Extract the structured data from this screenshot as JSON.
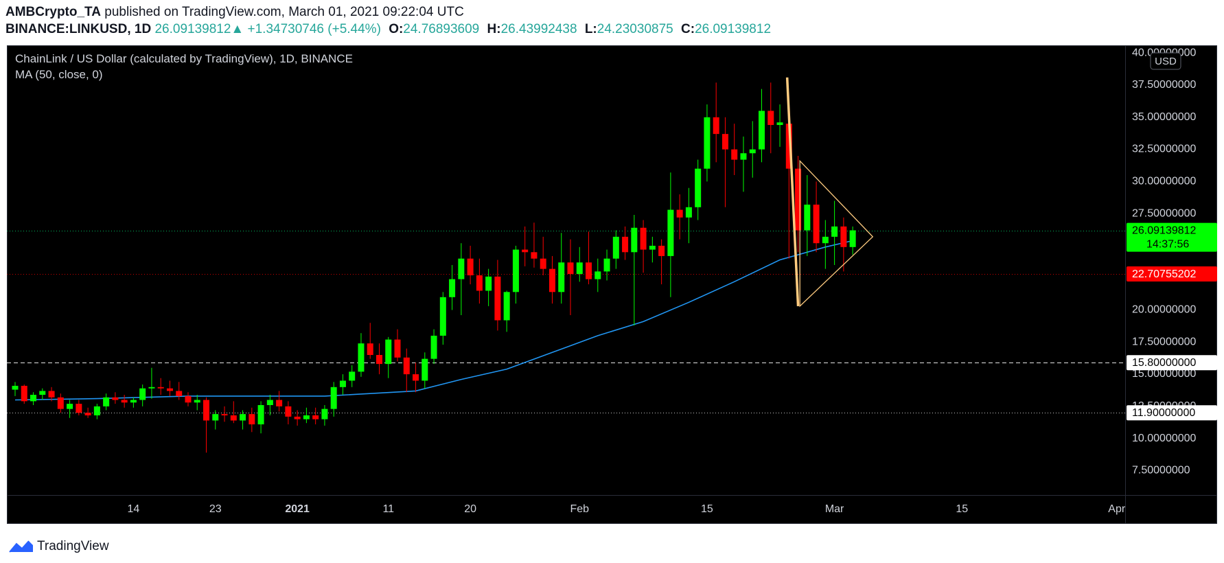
{
  "header": {
    "author": "AMBCrypto_TA",
    "published": "published on TradingView.com, March 01, 2021 09:22:04 UTC",
    "symbol": "BINANCE:LINKUSD, 1D",
    "last": "26.09139812",
    "change": "+1.34730746 (+5.44%)",
    "open_label": "O:",
    "open": "24.76893609",
    "high_label": "H:",
    "high": "26.43992438",
    "low_label": "L:",
    "low": "24.23030875",
    "close_label": "C:",
    "close": "26.09139812"
  },
  "legend": {
    "title": "ChainLink / US Dollar (calculated by TradingView), 1D, BINANCE",
    "indicator": "MA (50, close, 0)"
  },
  "footer": {
    "brand": "TradingView"
  },
  "colors": {
    "up": "#00ff00",
    "down": "#ff0000",
    "ma": "#2196f3",
    "triangle": "#ffcc80",
    "flagpole": "#ffcc80",
    "price_line": "#00e676",
    "red_line": "#ff0000"
  },
  "chart_data": {
    "type": "candlestick",
    "currency": "USD",
    "ylim": [
      5.5,
      40.5
    ],
    "y_ticks": [
      {
        "value": 7.5,
        "label": "7.50000000"
      },
      {
        "value": 10,
        "label": "10.00000000"
      },
      {
        "value": 12.5,
        "label": "12.50000000"
      },
      {
        "value": 15,
        "label": "15.00000000"
      },
      {
        "value": 17.5,
        "label": "17.50000000"
      },
      {
        "value": 20,
        "label": "20.00000000"
      },
      {
        "value": 22.5,
        "label": "22.50000000"
      },
      {
        "value": 25,
        "label": "25.00000000"
      },
      {
        "value": 27.5,
        "label": "27.50000000"
      },
      {
        "value": 30,
        "label": "30.00000000"
      },
      {
        "value": 32.5,
        "label": "32.50000000"
      },
      {
        "value": 35,
        "label": "35.00000000"
      },
      {
        "value": 37.5,
        "label": "37.50000000"
      },
      {
        "value": 40,
        "label": "40.00000000"
      }
    ],
    "x_ticks": [
      {
        "day": 14,
        "label": "14"
      },
      {
        "day": 23,
        "label": "23"
      },
      {
        "day": 32,
        "label": "2021"
      },
      {
        "day": 42,
        "label": "11"
      },
      {
        "day": 51,
        "label": "20"
      },
      {
        "day": 63,
        "label": "Feb"
      },
      {
        "day": 77,
        "label": "15"
      },
      {
        "day": 91,
        "label": "Mar"
      },
      {
        "day": 105,
        "label": "15"
      },
      {
        "day": 122,
        "label": "Apr"
      }
    ],
    "x_range": [
      1,
      123
    ],
    "price_labels": [
      {
        "value": 26.09139812,
        "label": "26.09139812",
        "sub": "14:37:56",
        "style": "green"
      },
      {
        "value": 22.70755202,
        "label": "22.70755202",
        "style": "red"
      },
      {
        "value": 15.8,
        "label": "15.80000000",
        "style": "white"
      },
      {
        "value": 11.9,
        "label": "11.90000000",
        "style": "white"
      }
    ],
    "horizontal_lines": [
      {
        "value": 26.09139812,
        "style": "dotted",
        "color": "#00e676"
      },
      {
        "value": 22.70755202,
        "style": "dotted",
        "color": "#ff0000"
      },
      {
        "value": 15.8,
        "style": "dashed",
        "color": "#ffffff"
      },
      {
        "value": 11.9,
        "style": "dotted",
        "color": "#ffffff"
      }
    ],
    "candles": [
      {
        "d": 1,
        "o": 13.7,
        "h": 14.3,
        "l": 13.2,
        "c": 14.0
      },
      {
        "d": 2,
        "o": 14.0,
        "h": 14.1,
        "l": 12.6,
        "c": 12.8
      },
      {
        "d": 3,
        "o": 12.8,
        "h": 13.5,
        "l": 12.5,
        "c": 13.3
      },
      {
        "d": 4,
        "o": 13.3,
        "h": 13.8,
        "l": 12.9,
        "c": 13.6
      },
      {
        "d": 5,
        "o": 13.6,
        "h": 13.9,
        "l": 12.8,
        "c": 13.1
      },
      {
        "d": 6,
        "o": 13.1,
        "h": 13.4,
        "l": 11.9,
        "c": 12.2
      },
      {
        "d": 7,
        "o": 12.2,
        "h": 12.9,
        "l": 11.5,
        "c": 12.6
      },
      {
        "d": 8,
        "o": 12.6,
        "h": 12.9,
        "l": 11.7,
        "c": 11.9
      },
      {
        "d": 9,
        "o": 11.9,
        "h": 12.3,
        "l": 11.5,
        "c": 11.7
      },
      {
        "d": 10,
        "o": 11.7,
        "h": 12.6,
        "l": 11.4,
        "c": 12.4
      },
      {
        "d": 11,
        "o": 12.4,
        "h": 13.4,
        "l": 12.1,
        "c": 13.1
      },
      {
        "d": 12,
        "o": 13.1,
        "h": 13.5,
        "l": 12.6,
        "c": 12.9
      },
      {
        "d": 13,
        "o": 12.9,
        "h": 13.3,
        "l": 12.3,
        "c": 12.7
      },
      {
        "d": 14,
        "o": 12.7,
        "h": 13.1,
        "l": 12.3,
        "c": 12.9
      },
      {
        "d": 15,
        "o": 12.9,
        "h": 14.1,
        "l": 12.4,
        "c": 13.8
      },
      {
        "d": 16,
        "o": 13.8,
        "h": 15.4,
        "l": 13.0,
        "c": 13.9
      },
      {
        "d": 17,
        "o": 13.9,
        "h": 14.6,
        "l": 13.3,
        "c": 13.8
      },
      {
        "d": 18,
        "o": 13.8,
        "h": 14.4,
        "l": 13.2,
        "c": 13.6
      },
      {
        "d": 19,
        "o": 13.6,
        "h": 14.3,
        "l": 12.9,
        "c": 13.2
      },
      {
        "d": 20,
        "o": 13.2,
        "h": 13.5,
        "l": 12.4,
        "c": 12.7
      },
      {
        "d": 21,
        "o": 12.7,
        "h": 13.3,
        "l": 12.1,
        "c": 12.9
      },
      {
        "d": 22,
        "o": 12.9,
        "h": 13.1,
        "l": 8.8,
        "c": 11.3
      },
      {
        "d": 23,
        "o": 11.3,
        "h": 12.1,
        "l": 10.6,
        "c": 11.8
      },
      {
        "d": 24,
        "o": 11.8,
        "h": 12.4,
        "l": 11.2,
        "c": 11.7
      },
      {
        "d": 25,
        "o": 11.7,
        "h": 12.8,
        "l": 11.1,
        "c": 11.3
      },
      {
        "d": 26,
        "o": 11.3,
        "h": 12.1,
        "l": 10.6,
        "c": 11.8
      },
      {
        "d": 27,
        "o": 11.8,
        "h": 12.3,
        "l": 10.4,
        "c": 11.0
      },
      {
        "d": 28,
        "o": 11.0,
        "h": 12.8,
        "l": 10.3,
        "c": 12.5
      },
      {
        "d": 29,
        "o": 12.5,
        "h": 13.3,
        "l": 11.7,
        "c": 12.9
      },
      {
        "d": 30,
        "o": 12.9,
        "h": 13.6,
        "l": 12.0,
        "c": 12.4
      },
      {
        "d": 31,
        "o": 12.4,
        "h": 12.8,
        "l": 11.0,
        "c": 11.6
      },
      {
        "d": 32,
        "o": 11.6,
        "h": 12.1,
        "l": 10.9,
        "c": 11.4
      },
      {
        "d": 33,
        "o": 11.4,
        "h": 12.3,
        "l": 11.1,
        "c": 11.7
      },
      {
        "d": 34,
        "o": 11.7,
        "h": 12.3,
        "l": 11.0,
        "c": 11.4
      },
      {
        "d": 35,
        "o": 11.4,
        "h": 12.5,
        "l": 10.9,
        "c": 12.2
      },
      {
        "d": 36,
        "o": 12.2,
        "h": 14.3,
        "l": 11.6,
        "c": 13.9
      },
      {
        "d": 37,
        "o": 13.9,
        "h": 14.9,
        "l": 13.3,
        "c": 14.4
      },
      {
        "d": 38,
        "o": 14.4,
        "h": 15.6,
        "l": 13.9,
        "c": 15.1
      },
      {
        "d": 39,
        "o": 15.1,
        "h": 18.1,
        "l": 14.7,
        "c": 17.3
      },
      {
        "d": 40,
        "o": 17.3,
        "h": 18.9,
        "l": 16.1,
        "c": 16.4
      },
      {
        "d": 41,
        "o": 16.4,
        "h": 17.3,
        "l": 14.9,
        "c": 15.7
      },
      {
        "d": 42,
        "o": 15.7,
        "h": 17.8,
        "l": 14.6,
        "c": 17.6
      },
      {
        "d": 43,
        "o": 17.6,
        "h": 18.4,
        "l": 15.9,
        "c": 16.2
      },
      {
        "d": 44,
        "o": 16.2,
        "h": 16.9,
        "l": 13.5,
        "c": 14.9
      },
      {
        "d": 45,
        "o": 14.9,
        "h": 15.8,
        "l": 13.5,
        "c": 14.4
      },
      {
        "d": 46,
        "o": 14.4,
        "h": 16.6,
        "l": 13.8,
        "c": 16.1
      },
      {
        "d": 47,
        "o": 16.1,
        "h": 18.4,
        "l": 15.7,
        "c": 17.9
      },
      {
        "d": 48,
        "o": 17.9,
        "h": 21.3,
        "l": 17.2,
        "c": 20.9
      },
      {
        "d": 49,
        "o": 20.9,
        "h": 23.4,
        "l": 19.9,
        "c": 22.3
      },
      {
        "d": 50,
        "o": 22.3,
        "h": 25.1,
        "l": 19.5,
        "c": 23.9
      },
      {
        "d": 51,
        "o": 23.9,
        "h": 24.9,
        "l": 21.9,
        "c": 22.6
      },
      {
        "d": 52,
        "o": 22.6,
        "h": 23.9,
        "l": 20.4,
        "c": 21.4
      },
      {
        "d": 53,
        "o": 21.4,
        "h": 23.1,
        "l": 20.2,
        "c": 22.5
      },
      {
        "d": 54,
        "o": 22.5,
        "h": 23.8,
        "l": 18.3,
        "c": 19.1
      },
      {
        "d": 55,
        "o": 19.1,
        "h": 21.4,
        "l": 18.2,
        "c": 21.3
      },
      {
        "d": 56,
        "o": 21.3,
        "h": 24.9,
        "l": 20.4,
        "c": 24.6
      },
      {
        "d": 57,
        "o": 24.6,
        "h": 26.4,
        "l": 23.3,
        "c": 24.4
      },
      {
        "d": 58,
        "o": 24.4,
        "h": 26.7,
        "l": 23.2,
        "c": 23.9
      },
      {
        "d": 59,
        "o": 23.9,
        "h": 25.6,
        "l": 22.6,
        "c": 23.1
      },
      {
        "d": 60,
        "o": 23.1,
        "h": 24.1,
        "l": 20.4,
        "c": 21.3
      },
      {
        "d": 61,
        "o": 21.3,
        "h": 25.9,
        "l": 20.4,
        "c": 23.6
      },
      {
        "d": 62,
        "o": 23.6,
        "h": 25.4,
        "l": 19.5,
        "c": 22.7
      },
      {
        "d": 63,
        "o": 22.7,
        "h": 24.8,
        "l": 22.1,
        "c": 23.6
      },
      {
        "d": 64,
        "o": 23.6,
        "h": 26.0,
        "l": 21.9,
        "c": 22.3
      },
      {
        "d": 65,
        "o": 22.3,
        "h": 23.9,
        "l": 21.3,
        "c": 22.9
      },
      {
        "d": 66,
        "o": 22.9,
        "h": 24.6,
        "l": 22.2,
        "c": 23.9
      },
      {
        "d": 67,
        "o": 23.9,
        "h": 26.1,
        "l": 23.1,
        "c": 25.6
      },
      {
        "d": 68,
        "o": 25.6,
        "h": 26.4,
        "l": 23.8,
        "c": 24.4
      },
      {
        "d": 69,
        "o": 24.4,
        "h": 27.3,
        "l": 18.7,
        "c": 26.3
      },
      {
        "d": 70,
        "o": 26.3,
        "h": 26.9,
        "l": 22.8,
        "c": 24.6
      },
      {
        "d": 71,
        "o": 24.6,
        "h": 25.6,
        "l": 23.6,
        "c": 24.9
      },
      {
        "d": 72,
        "o": 24.9,
        "h": 25.4,
        "l": 21.9,
        "c": 24.1
      },
      {
        "d": 73,
        "o": 24.1,
        "h": 30.6,
        "l": 20.9,
        "c": 27.7
      },
      {
        "d": 74,
        "o": 27.7,
        "h": 28.9,
        "l": 25.4,
        "c": 27.1
      },
      {
        "d": 75,
        "o": 27.1,
        "h": 29.4,
        "l": 25.1,
        "c": 27.9
      },
      {
        "d": 76,
        "o": 27.9,
        "h": 31.6,
        "l": 26.9,
        "c": 30.9
      },
      {
        "d": 77,
        "o": 30.9,
        "h": 35.9,
        "l": 29.9,
        "c": 34.9
      },
      {
        "d": 78,
        "o": 34.9,
        "h": 37.6,
        "l": 31.4,
        "c": 33.6
      },
      {
        "d": 79,
        "o": 33.6,
        "h": 34.9,
        "l": 27.9,
        "c": 32.4
      },
      {
        "d": 80,
        "o": 32.4,
        "h": 34.4,
        "l": 30.4,
        "c": 31.6
      },
      {
        "d": 81,
        "o": 31.6,
        "h": 33.4,
        "l": 29.1,
        "c": 32.1
      },
      {
        "d": 82,
        "o": 32.1,
        "h": 34.6,
        "l": 30.2,
        "c": 32.4
      },
      {
        "d": 83,
        "o": 32.4,
        "h": 37.1,
        "l": 31.4,
        "c": 35.4
      },
      {
        "d": 84,
        "o": 35.4,
        "h": 37.6,
        "l": 32.1,
        "c": 34.3
      },
      {
        "d": 85,
        "o": 34.3,
        "h": 35.9,
        "l": 32.6,
        "c": 34.5
      },
      {
        "d": 86,
        "o": 34.4,
        "h": 35.4,
        "l": 23.9,
        "c": 30.9
      },
      {
        "d": 87,
        "o": 30.9,
        "h": 31.9,
        "l": 24.4,
        "c": 26.1
      },
      {
        "d": 88,
        "o": 26.1,
        "h": 30.4,
        "l": 24.1,
        "c": 28.1
      },
      {
        "d": 89,
        "o": 28.1,
        "h": 29.9,
        "l": 24.4,
        "c": 25.1
      },
      {
        "d": 90,
        "o": 25.1,
        "h": 26.9,
        "l": 23.1,
        "c": 25.6
      },
      {
        "d": 91,
        "o": 25.6,
        "h": 28.4,
        "l": 23.4,
        "c": 26.4
      },
      {
        "d": 92,
        "o": 26.4,
        "h": 27.1,
        "l": 22.9,
        "c": 24.8
      },
      {
        "d": 93,
        "o": 24.8,
        "h": 26.4,
        "l": 24.2,
        "c": 26.1
      }
    ],
    "ma_series": [
      {
        "d": 1,
        "v": 12.9
      },
      {
        "d": 10,
        "v": 13.0
      },
      {
        "d": 20,
        "v": 13.2
      },
      {
        "d": 30,
        "v": 13.2
      },
      {
        "d": 35,
        "v": 13.2
      },
      {
        "d": 40,
        "v": 13.4
      },
      {
        "d": 45,
        "v": 13.6
      },
      {
        "d": 50,
        "v": 14.5
      },
      {
        "d": 55,
        "v": 15.3
      },
      {
        "d": 60,
        "v": 16.6
      },
      {
        "d": 65,
        "v": 17.9
      },
      {
        "d": 70,
        "v": 19.0
      },
      {
        "d": 75,
        "v": 20.5
      },
      {
        "d": 80,
        "v": 22.1
      },
      {
        "d": 85,
        "v": 23.8
      },
      {
        "d": 90,
        "v": 24.8
      },
      {
        "d": 93,
        "v": 25.3
      }
    ],
    "annotations": {
      "flagpole": {
        "d1": 85.8,
        "v1": 38.0,
        "d2": 87.0,
        "v2": 20.2
      },
      "triangle": [
        {
          "d": 87.2,
          "v": 31.5
        },
        {
          "d": 95.2,
          "v": 25.6
        },
        {
          "d": 87.2,
          "v": 20.2
        }
      ]
    }
  }
}
